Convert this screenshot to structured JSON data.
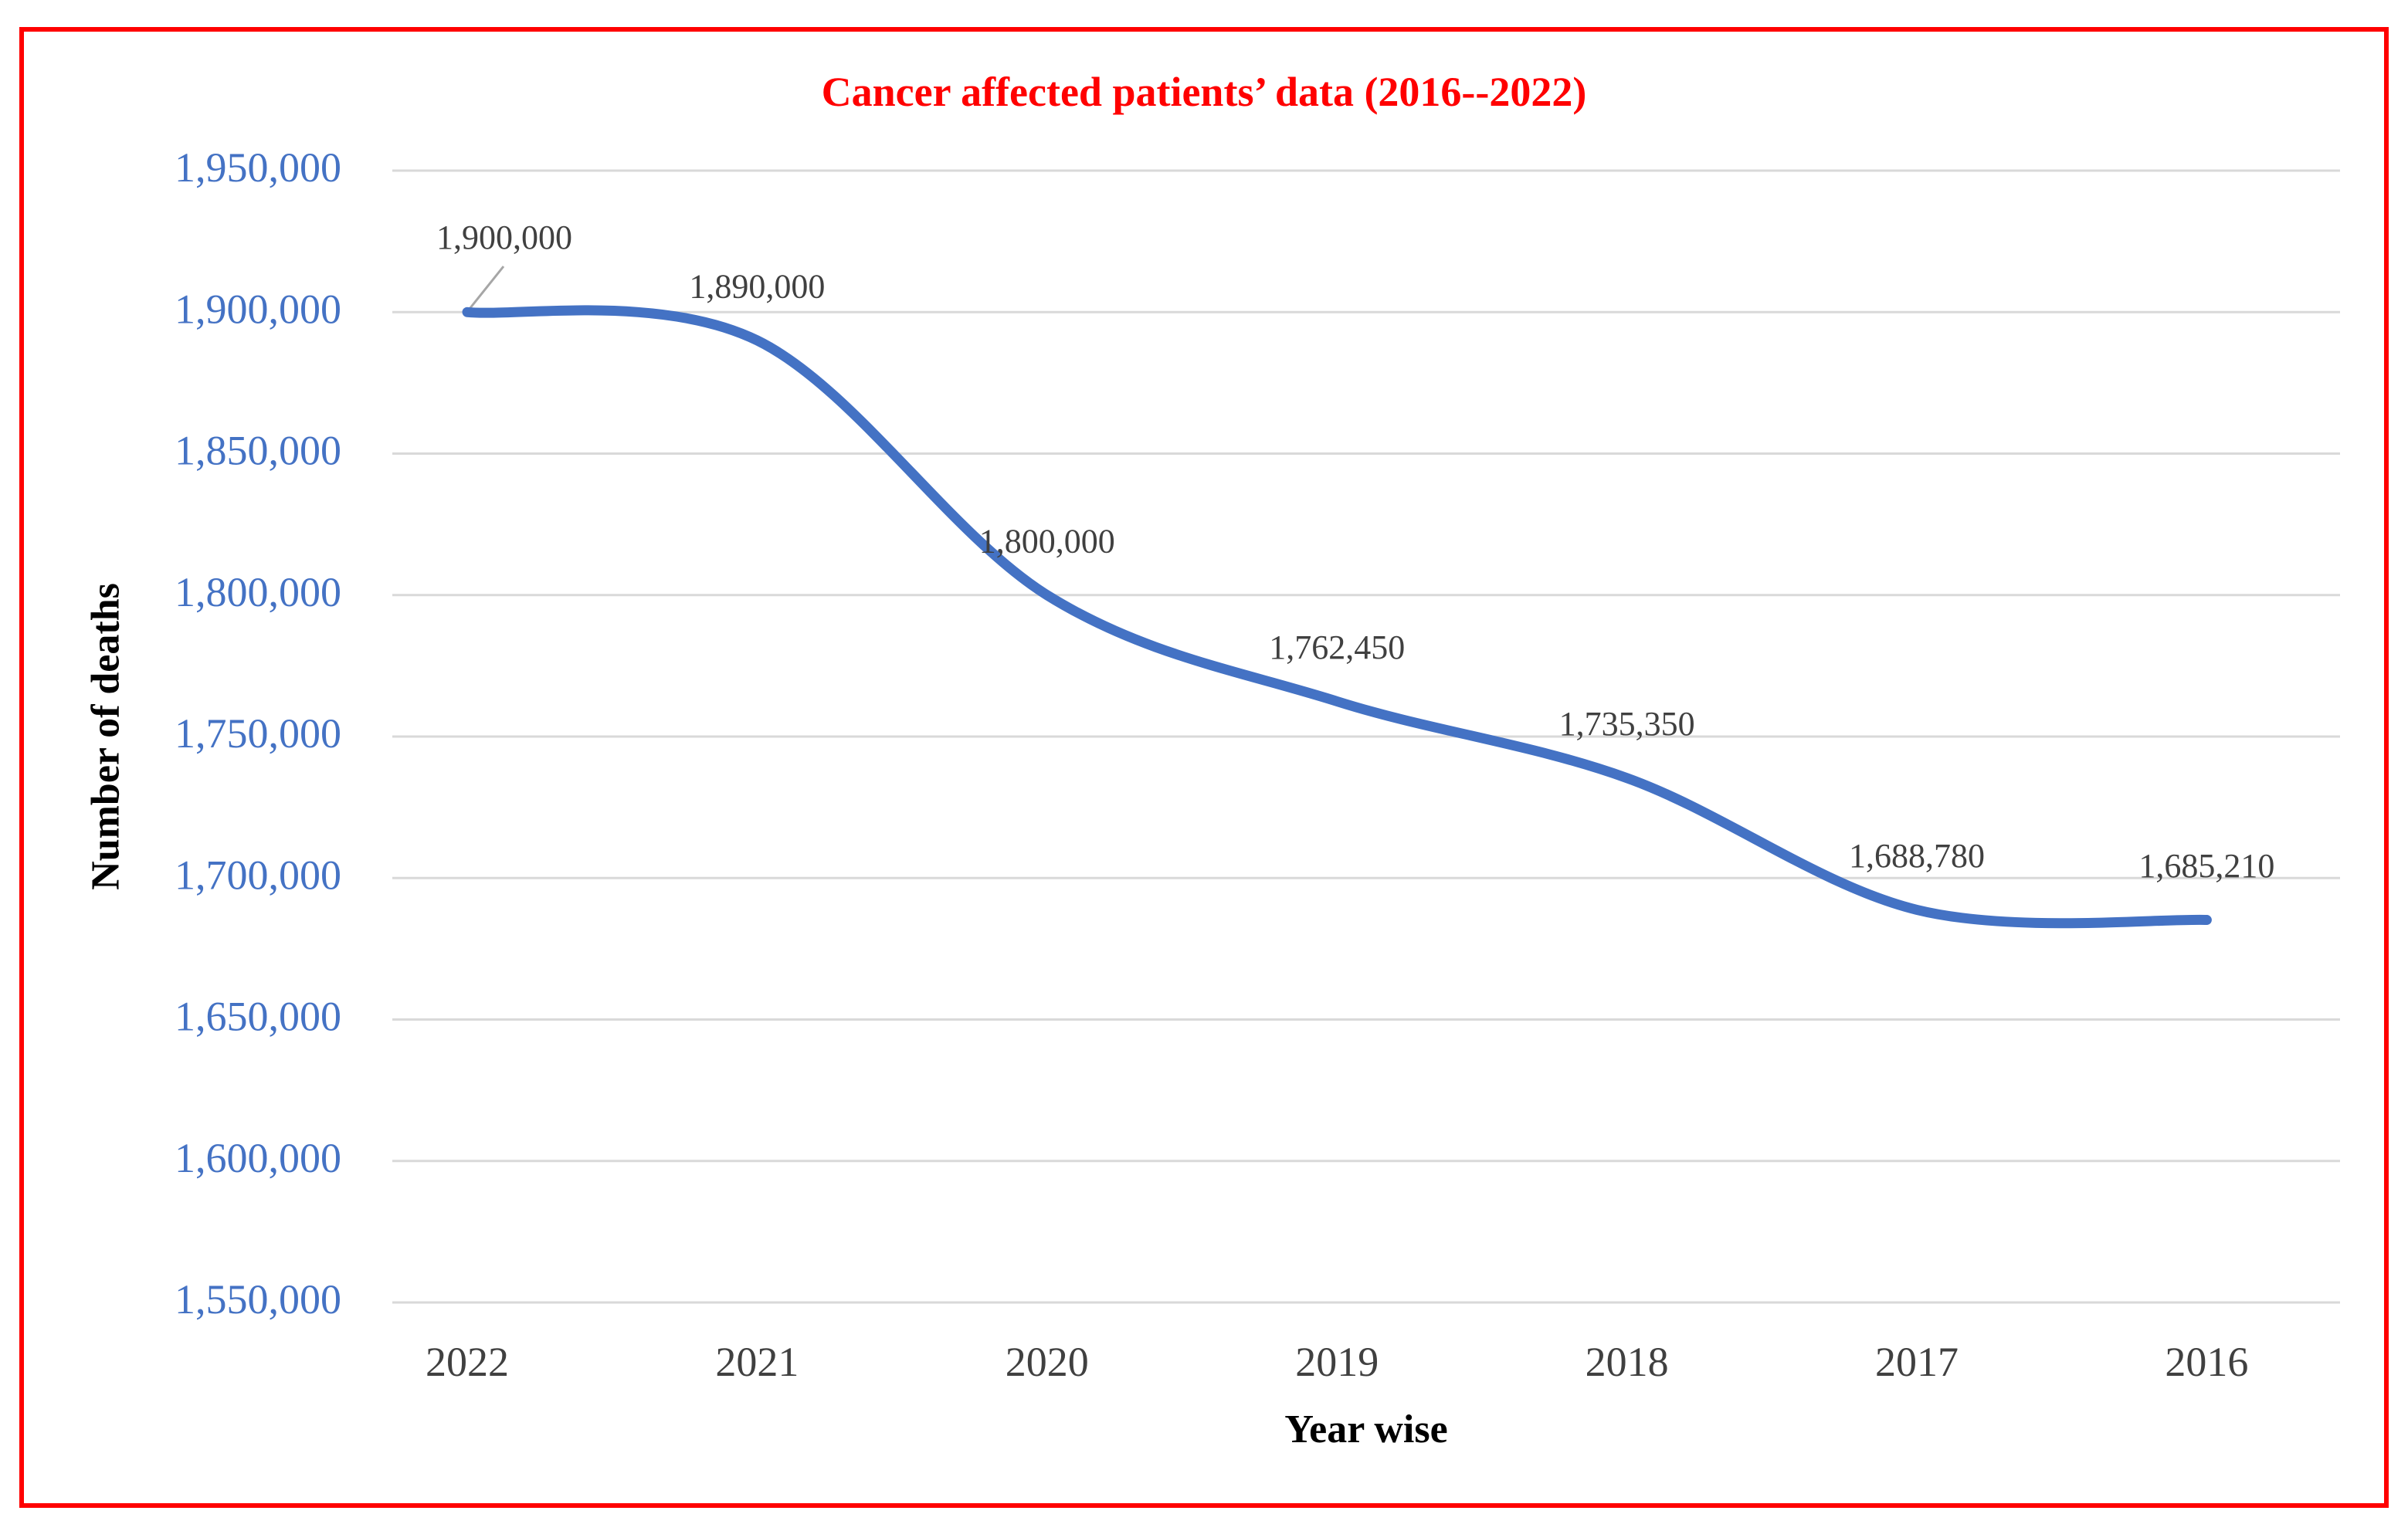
{
  "frame": {
    "border_color": "#FF0000"
  },
  "chart_data": {
    "type": "line",
    "title": "Cancer affected patients’ data (2016--2022)",
    "xlabel": "Year wise",
    "ylabel": "Number of deaths",
    "categories": [
      "2022",
      "2021",
      "2020",
      "2019",
      "2018",
      "2017",
      "2016"
    ],
    "series": [
      {
        "name": "Number of deaths",
        "color": "#4472C4",
        "values": [
          1900000,
          1890000,
          1800000,
          1762450,
          1735350,
          1688780,
          1685210
        ]
      }
    ],
    "data_labels": [
      "1,900,000",
      "1,890,000",
      "1,800,000",
      "1,762,450",
      "1,735,350",
      "1,688,780",
      "1,685,210"
    ],
    "ylim": [
      1550000,
      1950000
    ],
    "ytick_step": 50000,
    "ytick_labels": [
      "1,550,000",
      "1,600,000",
      "1,650,000",
      "1,700,000",
      "1,750,000",
      "1,800,000",
      "1,850,000",
      "1,900,000",
      "1,950,000"
    ],
    "grid": true,
    "legend_position": "none",
    "line_smoothing": true,
    "colors": {
      "line": "#4472C4",
      "y_tick_text": "#4472C4",
      "x_tick_text": "#404040",
      "data_label_text": "#404040",
      "title_text": "#FF0000",
      "axis_title_text": "#000000",
      "gridline": "#D9D9D9",
      "leader_line": "#A6A6A6",
      "frame_border": "#FF0000"
    }
  }
}
